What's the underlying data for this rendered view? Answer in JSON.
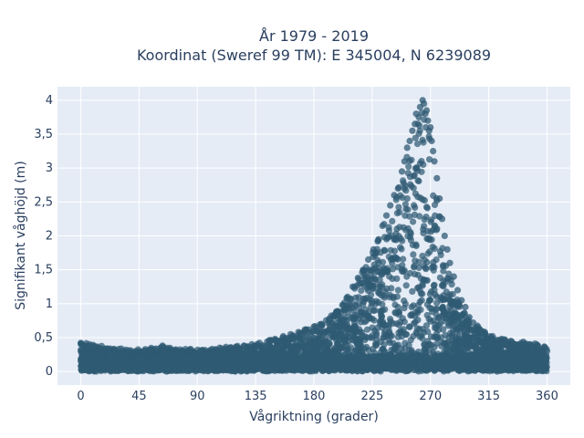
{
  "chart_data": {
    "type": "scatter",
    "title": "År 1979 - 2019",
    "subtitle": "Koordinat (Sweref 99 TM): E 345004, N 6239089",
    "xlabel": "Vågriktning (grader)",
    "ylabel": "Signifikant våghöjd (m)",
    "xlim": [
      -18,
      378
    ],
    "ylim": [
      -0.2,
      4.2
    ],
    "x_ticks": [
      0,
      45,
      90,
      135,
      180,
      225,
      270,
      315,
      360
    ],
    "x_tick_labels": [
      "0",
      "45",
      "90",
      "135",
      "180",
      "225",
      "270",
      "315",
      "360"
    ],
    "y_ticks": [
      0,
      0.5,
      1,
      1.5,
      2,
      2.5,
      3,
      3.5,
      4
    ],
    "y_tick_labels": [
      "0",
      "0,5",
      "1",
      "1,5",
      "2",
      "2,5",
      "3",
      "3,5",
      "4"
    ],
    "grid": true,
    "marker_color": "#2f5a73",
    "plot_background": "#e5ecf6",
    "envelope": {
      "x": [
        0,
        15,
        30,
        45,
        60,
        75,
        90,
        105,
        120,
        135,
        150,
        165,
        180,
        195,
        205,
        215,
        225,
        235,
        245,
        252,
        258,
        262,
        265,
        268,
        270,
        273,
        276,
        280,
        285,
        290,
        295,
        300,
        310,
        320,
        330,
        340,
        350,
        360
      ],
      "y_max": [
        0.42,
        0.35,
        0.32,
        0.3,
        0.35,
        0.32,
        0.3,
        0.32,
        0.35,
        0.4,
        0.48,
        0.55,
        0.65,
        0.85,
        1.1,
        1.4,
        1.8,
        2.3,
        2.75,
        3.3,
        3.65,
        3.85,
        4.0,
        3.85,
        3.6,
        3.1,
        2.5,
        1.9,
        1.5,
        1.15,
        0.9,
        0.75,
        0.6,
        0.5,
        0.45,
        0.42,
        0.4,
        0.35
      ]
    },
    "series": [
      {
        "points": [
          [
            0,
            0.42
          ],
          [
            3,
            0.38
          ],
          [
            8,
            0.3
          ],
          [
            12,
            0.35
          ],
          [
            18,
            0.28
          ],
          [
            25,
            0.3
          ],
          [
            33,
            0.27
          ],
          [
            40,
            0.28
          ],
          [
            47,
            0.29
          ],
          [
            52,
            0.26
          ],
          [
            58,
            0.27
          ],
          [
            63,
            0.38
          ],
          [
            69,
            0.32
          ],
          [
            75,
            0.3
          ],
          [
            82,
            0.28
          ],
          [
            88,
            0.27
          ],
          [
            95,
            0.3
          ],
          [
            102,
            0.3
          ],
          [
            108,
            0.31
          ],
          [
            114,
            0.32
          ],
          [
            120,
            0.34
          ],
          [
            126,
            0.38
          ],
          [
            132,
            0.4
          ],
          [
            138,
            0.42
          ],
          [
            144,
            0.44
          ],
          [
            150,
            0.48
          ],
          [
            156,
            0.5
          ],
          [
            162,
            0.55
          ],
          [
            168,
            0.58
          ],
          [
            174,
            0.62
          ],
          [
            180,
            0.66
          ],
          [
            186,
            0.7
          ],
          [
            192,
            0.78
          ],
          [
            198,
            0.88
          ],
          [
            202,
            0.98
          ],
          [
            206,
            1.1
          ],
          [
            210,
            1.25
          ],
          [
            214,
            1.38
          ],
          [
            218,
            1.5
          ],
          [
            222,
            1.65
          ],
          [
            226,
            1.8
          ],
          [
            230,
            1.95
          ],
          [
            233,
            2.15
          ],
          [
            236,
            2.3
          ],
          [
            239,
            2.45
          ],
          [
            242,
            2.6
          ],
          [
            245,
            2.7
          ],
          [
            248,
            2.95
          ],
          [
            250,
            3.1
          ],
          [
            252,
            3.3
          ],
          [
            254,
            3.4
          ],
          [
            256,
            3.55
          ],
          [
            258,
            3.65
          ],
          [
            259,
            3.8
          ],
          [
            261,
            3.75
          ],
          [
            262,
            3.9
          ],
          [
            264,
            4.0
          ],
          [
            265,
            3.95
          ],
          [
            266,
            3.8
          ],
          [
            267,
            3.85
          ],
          [
            268,
            3.7
          ],
          [
            269,
            3.55
          ],
          [
            270,
            3.6
          ],
          [
            271,
            3.4
          ],
          [
            272,
            3.25
          ],
          [
            273,
            3.1
          ],
          [
            275,
            2.85
          ],
          [
            277,
            2.55
          ],
          [
            279,
            2.25
          ],
          [
            281,
            2.0
          ],
          [
            283,
            1.8
          ],
          [
            285,
            1.6
          ],
          [
            288,
            1.4
          ],
          [
            291,
            1.2
          ],
          [
            294,
            1.05
          ],
          [
            297,
            0.95
          ],
          [
            300,
            0.8
          ],
          [
            303,
            0.72
          ],
          [
            307,
            0.65
          ],
          [
            312,
            0.58
          ],
          [
            318,
            0.52
          ],
          [
            325,
            0.48
          ],
          [
            332,
            0.45
          ],
          [
            340,
            0.42
          ],
          [
            347,
            0.4
          ],
          [
            353,
            0.38
          ],
          [
            358,
            0.35
          ],
          [
            360,
            0.3
          ]
        ]
      }
    ]
  }
}
